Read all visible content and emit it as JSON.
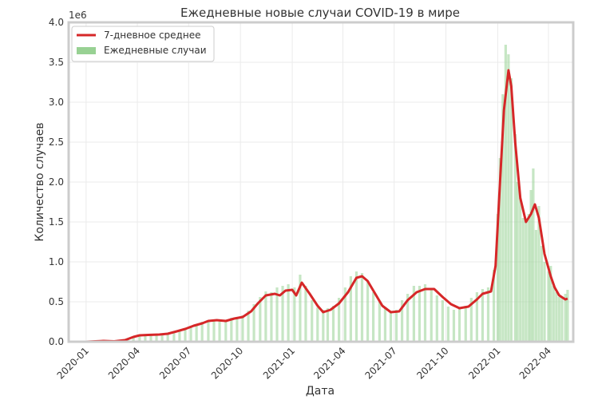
{
  "chart_data": {
    "type": "bar",
    "title": "Ежедневные новые случаи COVID-19 в мире",
    "xlabel": "Дата",
    "ylabel": "Количество случаев",
    "y_scale_label": "1e6",
    "ylim": [
      0,
      4.0
    ],
    "xlim": [
      "2019-12-01",
      "2022-05-15"
    ],
    "grid": true,
    "legend_position": "top-left",
    "y_ticks": [
      "0.0",
      "0.5",
      "1.0",
      "1.5",
      "2.0",
      "2.5",
      "3.0",
      "3.5",
      "4.0"
    ],
    "x_ticks": [
      "2020-01",
      "2020-04",
      "2020-07",
      "2020-10",
      "2021-01",
      "2021-04",
      "2021-07",
      "2021-10",
      "2022-01",
      "2022-04"
    ],
    "series": [
      {
        "name": "7-дневное среднее",
        "kind": "line",
        "color": "#d62728",
        "points": [
          [
            "2020-01-01",
            0.0
          ],
          [
            "2020-02-01",
            0.01
          ],
          [
            "2020-02-20",
            0.005
          ],
          [
            "2020-03-10",
            0.02
          ],
          [
            "2020-03-25",
            0.06
          ],
          [
            "2020-04-05",
            0.08
          ],
          [
            "2020-04-20",
            0.085
          ],
          [
            "2020-05-10",
            0.09
          ],
          [
            "2020-05-25",
            0.1
          ],
          [
            "2020-06-10",
            0.13
          ],
          [
            "2020-06-25",
            0.16
          ],
          [
            "2020-07-10",
            0.2
          ],
          [
            "2020-07-25",
            0.23
          ],
          [
            "2020-08-05",
            0.26
          ],
          [
            "2020-08-20",
            0.27
          ],
          [
            "2020-09-05",
            0.26
          ],
          [
            "2020-09-20",
            0.29
          ],
          [
            "2020-10-05",
            0.31
          ],
          [
            "2020-10-20",
            0.38
          ],
          [
            "2020-11-01",
            0.48
          ],
          [
            "2020-11-15",
            0.58
          ],
          [
            "2020-12-01",
            0.6
          ],
          [
            "2020-12-10",
            0.58
          ],
          [
            "2020-12-20",
            0.64
          ],
          [
            "2021-01-01",
            0.65
          ],
          [
            "2021-01-08",
            0.58
          ],
          [
            "2021-01-18",
            0.74
          ],
          [
            "2021-02-01",
            0.6
          ],
          [
            "2021-02-15",
            0.45
          ],
          [
            "2021-02-25",
            0.37
          ],
          [
            "2021-03-10",
            0.4
          ],
          [
            "2021-03-25",
            0.48
          ],
          [
            "2021-04-10",
            0.62
          ],
          [
            "2021-04-25",
            0.8
          ],
          [
            "2021-05-05",
            0.82
          ],
          [
            "2021-05-15",
            0.76
          ],
          [
            "2021-05-25",
            0.64
          ],
          [
            "2021-06-10",
            0.45
          ],
          [
            "2021-06-25",
            0.37
          ],
          [
            "2021-07-10",
            0.38
          ],
          [
            "2021-07-25",
            0.52
          ],
          [
            "2021-08-10",
            0.62
          ],
          [
            "2021-08-25",
            0.66
          ],
          [
            "2021-09-10",
            0.66
          ],
          [
            "2021-09-25",
            0.56
          ],
          [
            "2021-10-10",
            0.47
          ],
          [
            "2021-10-25",
            0.42
          ],
          [
            "2021-11-10",
            0.44
          ],
          [
            "2021-11-25",
            0.53
          ],
          [
            "2021-12-05",
            0.6
          ],
          [
            "2021-12-20",
            0.63
          ],
          [
            "2021-12-28",
            0.95
          ],
          [
            "2022-01-05",
            2.0
          ],
          [
            "2022-01-12",
            2.9
          ],
          [
            "2022-01-20",
            3.4
          ],
          [
            "2022-01-25",
            3.2
          ],
          [
            "2022-02-01",
            2.5
          ],
          [
            "2022-02-10",
            1.8
          ],
          [
            "2022-02-20",
            1.5
          ],
          [
            "2022-03-01",
            1.6
          ],
          [
            "2022-03-08",
            1.72
          ],
          [
            "2022-03-15",
            1.55
          ],
          [
            "2022-03-25",
            1.1
          ],
          [
            "2022-04-05",
            0.82
          ],
          [
            "2022-04-12",
            0.68
          ],
          [
            "2022-04-20",
            0.58
          ],
          [
            "2022-05-01",
            0.53
          ],
          [
            "2022-05-05",
            0.54
          ]
        ]
      },
      {
        "name": "Ежедневные случаи",
        "kind": "bar",
        "color": "#98d193",
        "points": [
          [
            "2020-01-05",
            0.0
          ],
          [
            "2020-01-15",
            0.0
          ],
          [
            "2020-01-25",
            0.005
          ],
          [
            "2020-02-05",
            0.015
          ],
          [
            "2020-02-15",
            0.01
          ],
          [
            "2020-02-25",
            0.005
          ],
          [
            "2020-03-05",
            0.01
          ],
          [
            "2020-03-15",
            0.03
          ],
          [
            "2020-03-25",
            0.06
          ],
          [
            "2020-04-05",
            0.08
          ],
          [
            "2020-04-15",
            0.085
          ],
          [
            "2020-04-25",
            0.09
          ],
          [
            "2020-05-05",
            0.09
          ],
          [
            "2020-05-15",
            0.095
          ],
          [
            "2020-05-25",
            0.1
          ],
          [
            "2020-06-05",
            0.12
          ],
          [
            "2020-06-15",
            0.14
          ],
          [
            "2020-06-25",
            0.17
          ],
          [
            "2020-07-05",
            0.2
          ],
          [
            "2020-07-15",
            0.22
          ],
          [
            "2020-07-25",
            0.25
          ],
          [
            "2020-08-05",
            0.27
          ],
          [
            "2020-08-15",
            0.28
          ],
          [
            "2020-08-25",
            0.26
          ],
          [
            "2020-09-05",
            0.27
          ],
          [
            "2020-09-15",
            0.3
          ],
          [
            "2020-09-25",
            0.3
          ],
          [
            "2020-10-05",
            0.33
          ],
          [
            "2020-10-15",
            0.39
          ],
          [
            "2020-10-25",
            0.47
          ],
          [
            "2020-11-05",
            0.56
          ],
          [
            "2020-11-15",
            0.63
          ],
          [
            "2020-11-25",
            0.62
          ],
          [
            "2020-12-05",
            0.68
          ],
          [
            "2020-12-15",
            0.7
          ],
          [
            "2020-12-25",
            0.72
          ],
          [
            "2021-01-05",
            0.68
          ],
          [
            "2021-01-15",
            0.84
          ],
          [
            "2021-01-25",
            0.7
          ],
          [
            "2021-02-05",
            0.52
          ],
          [
            "2021-02-15",
            0.43
          ],
          [
            "2021-02-25",
            0.4
          ],
          [
            "2021-03-05",
            0.42
          ],
          [
            "2021-03-15",
            0.45
          ],
          [
            "2021-03-25",
            0.55
          ],
          [
            "2021-04-05",
            0.68
          ],
          [
            "2021-04-15",
            0.82
          ],
          [
            "2021-04-25",
            0.88
          ],
          [
            "2021-05-05",
            0.86
          ],
          [
            "2021-05-15",
            0.76
          ],
          [
            "2021-05-25",
            0.62
          ],
          [
            "2021-06-05",
            0.5
          ],
          [
            "2021-06-15",
            0.42
          ],
          [
            "2021-06-25",
            0.38
          ],
          [
            "2021-07-05",
            0.4
          ],
          [
            "2021-07-15",
            0.52
          ],
          [
            "2021-07-25",
            0.6
          ],
          [
            "2021-08-05",
            0.7
          ],
          [
            "2021-08-15",
            0.7
          ],
          [
            "2021-08-25",
            0.72
          ],
          [
            "2021-09-05",
            0.66
          ],
          [
            "2021-09-15",
            0.58
          ],
          [
            "2021-09-25",
            0.52
          ],
          [
            "2021-10-05",
            0.44
          ],
          [
            "2021-10-15",
            0.4
          ],
          [
            "2021-10-25",
            0.42
          ],
          [
            "2021-11-05",
            0.45
          ],
          [
            "2021-11-15",
            0.55
          ],
          [
            "2021-11-25",
            0.62
          ],
          [
            "2021-12-05",
            0.66
          ],
          [
            "2021-12-15",
            0.68
          ],
          [
            "2021-12-25",
            0.9
          ],
          [
            "2022-01-01",
            1.6
          ],
          [
            "2022-01-05",
            2.3
          ],
          [
            "2022-01-10",
            3.1
          ],
          [
            "2022-01-15",
            3.72
          ],
          [
            "2022-01-20",
            3.6
          ],
          [
            "2022-01-25",
            3.3
          ],
          [
            "2022-02-01",
            2.6
          ],
          [
            "2022-02-05",
            2.0
          ],
          [
            "2022-02-10",
            1.8
          ],
          [
            "2022-02-15",
            1.55
          ],
          [
            "2022-02-20",
            1.5
          ],
          [
            "2022-02-25",
            1.6
          ],
          [
            "2022-03-01",
            1.9
          ],
          [
            "2022-03-05",
            2.17
          ],
          [
            "2022-03-10",
            1.4
          ],
          [
            "2022-03-15",
            1.7
          ],
          [
            "2022-03-20",
            1.2
          ],
          [
            "2022-03-25",
            1.0
          ],
          [
            "2022-04-01",
            0.88
          ],
          [
            "2022-04-05",
            0.95
          ],
          [
            "2022-04-10",
            0.7
          ],
          [
            "2022-04-15",
            0.62
          ],
          [
            "2022-04-20",
            0.56
          ],
          [
            "2022-04-25",
            0.55
          ],
          [
            "2022-05-01",
            0.6
          ],
          [
            "2022-05-05",
            0.65
          ]
        ]
      }
    ]
  }
}
